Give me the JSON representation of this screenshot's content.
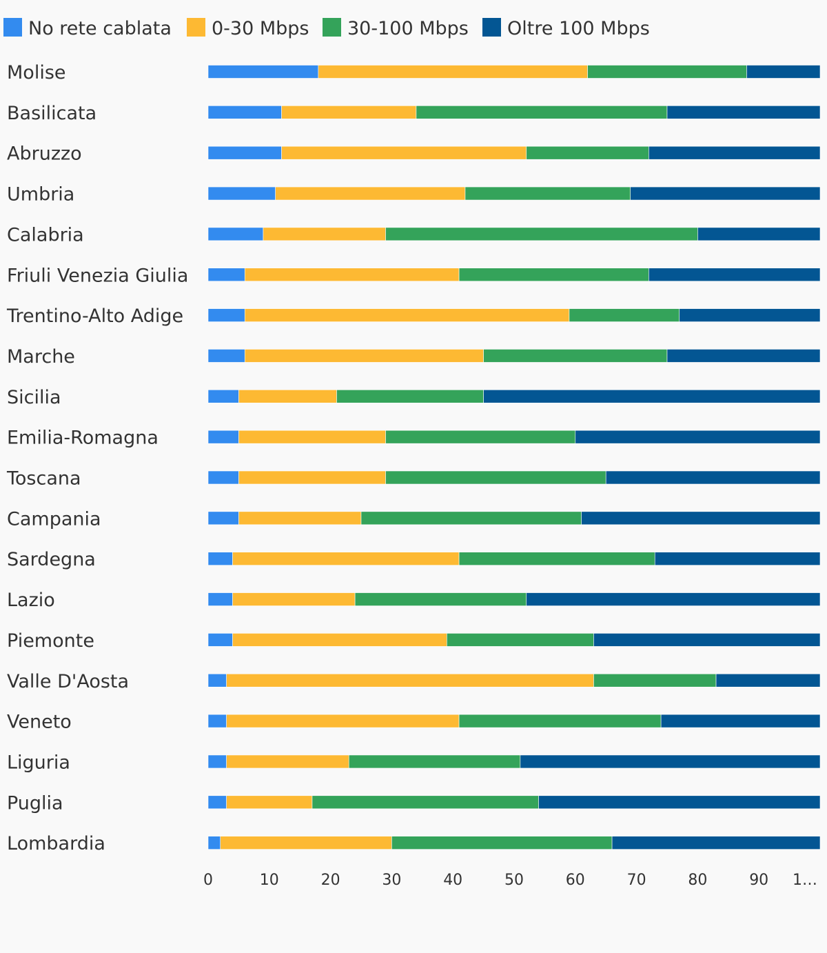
{
  "chart_data": {
    "type": "bar",
    "orientation": "horizontal",
    "stacked": true,
    "title": "",
    "xlabel": "",
    "ylabel": "",
    "xlim": [
      0,
      100
    ],
    "grid": false,
    "legend_position": "top-left",
    "categories": [
      "Molise",
      "Basilicata",
      "Abruzzo",
      "Umbria",
      "Calabria",
      "Friuli Venezia Giulia",
      "Trentino-Alto Adige",
      "Marche",
      "Sicilia",
      "Emilia-Romagna",
      "Toscana",
      "Campania",
      "Sardegna",
      "Lazio",
      "Piemonte",
      "Valle D'Aosta",
      "Veneto",
      "Liguria",
      "Puglia",
      "Lombardia"
    ],
    "series": [
      {
        "name": "No rete cablata",
        "color": "#338bef",
        "values": [
          18,
          12,
          12,
          11,
          9,
          6,
          6,
          6,
          5,
          5,
          5,
          5,
          4,
          4,
          4,
          3,
          3,
          3,
          3,
          2
        ]
      },
      {
        "name": "0-30 Mbps",
        "color": "#fdb933",
        "values": [
          44,
          22,
          40,
          31,
          20,
          35,
          53,
          39,
          16,
          24,
          24,
          20,
          37,
          20,
          35,
          60,
          38,
          20,
          14,
          28
        ]
      },
      {
        "name": "30-100 Mbps",
        "color": "#34a35a",
        "values": [
          26,
          41,
          20,
          27,
          51,
          31,
          18,
          30,
          24,
          31,
          36,
          36,
          32,
          28,
          24,
          20,
          33,
          28,
          37,
          36
        ]
      },
      {
        "name": "Oltre 100 Mbps",
        "color": "#035693",
        "values": [
          12,
          25,
          28,
          31,
          20,
          28,
          23,
          25,
          55,
          40,
          35,
          39,
          27,
          48,
          37,
          17,
          26,
          49,
          46,
          34
        ]
      }
    ],
    "x_ticks": [
      "0",
      "10",
      "20",
      "30",
      "40",
      "50",
      "60",
      "70",
      "80",
      "90",
      "1…"
    ]
  }
}
